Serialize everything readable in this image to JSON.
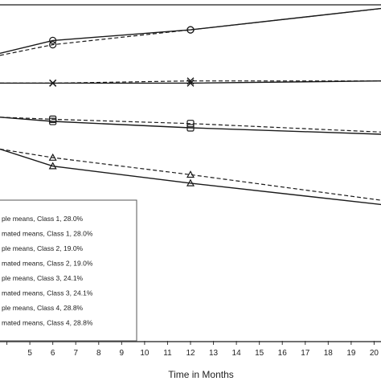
{
  "chart_data": {
    "type": "line",
    "title": "",
    "xlabel": "Time in Months",
    "ylabel": "",
    "xlim": [
      3.7,
      20.3
    ],
    "ylim": [
      0,
      16
    ],
    "grid": false,
    "legend_position": "lower-left",
    "x_ticks": [
      5,
      6,
      7,
      8,
      9,
      10,
      11,
      12,
      13,
      14,
      15,
      16,
      17,
      18,
      19,
      20
    ],
    "x_tick_labels": [
      "5",
      "6",
      "7",
      "8",
      "9",
      "10",
      "11",
      "12",
      "13",
      "14",
      "15",
      "16",
      "17",
      "18",
      "19",
      "20"
    ],
    "series": [
      {
        "name": "ple means, Class 1, 28.0%",
        "class": 1,
        "kind": "sample",
        "marker": "circle",
        "dash": "solid",
        "x": [
          3.7,
          6,
          12,
          20.3
        ],
        "y": [
          13.5,
          14.1,
          14.6,
          15.6
        ]
      },
      {
        "name": "mated means, Class 1, 28.0%",
        "class": 1,
        "kind": "estimated",
        "marker": "circle",
        "dash": "dashed",
        "x": [
          3.7,
          6,
          12,
          20.3
        ],
        "y": [
          13.4,
          13.9,
          14.6,
          15.6
        ]
      },
      {
        "name": "ple means, Class 2, 19.0%",
        "class": 2,
        "kind": "sample",
        "marker": "x",
        "dash": "solid",
        "x": [
          3.7,
          6,
          12,
          20.3
        ],
        "y": [
          12.1,
          12.1,
          12.1,
          12.2
        ]
      },
      {
        "name": "mated means, Class 2, 19.0%",
        "class": 2,
        "kind": "estimated",
        "marker": "x",
        "dash": "dashed",
        "x": [
          3.7,
          6,
          12,
          20.3
        ],
        "y": [
          12.1,
          12.1,
          12.2,
          12.2
        ]
      },
      {
        "name": "ple means, Class 3, 24.1%",
        "class": 3,
        "kind": "sample",
        "marker": "square",
        "dash": "solid",
        "x": [
          3.7,
          6,
          12,
          20.3
        ],
        "y": [
          10.5,
          10.3,
          10.0,
          9.7
        ]
      },
      {
        "name": "mated means, Class 3, 24.1%",
        "class": 3,
        "kind": "estimated",
        "marker": "square",
        "dash": "dashed",
        "x": [
          3.7,
          6,
          12,
          20.3
        ],
        "y": [
          10.5,
          10.4,
          10.2,
          9.8
        ]
      },
      {
        "name": "ple means, Class 4, 28.8%",
        "class": 4,
        "kind": "sample",
        "marker": "triangle",
        "dash": "solid",
        "x": [
          3.7,
          6,
          12,
          20.3
        ],
        "y": [
          9.0,
          8.2,
          7.4,
          6.4
        ]
      },
      {
        "name": "mated means, Class 4, 28.8%",
        "class": 4,
        "kind": "estimated",
        "marker": "triangle",
        "dash": "dashed",
        "x": [
          3.7,
          6,
          12,
          20.3
        ],
        "y": [
          9.0,
          8.6,
          7.8,
          6.6
        ]
      }
    ],
    "legend": [
      "ple means, Class 1, 28.0%",
      "mated means, Class 1, 28.0%",
      "ple means, Class 2, 19.0%",
      "mated means, Class 2, 19.0%",
      "ple means, Class 3, 24.1%",
      "mated means, Class 3, 24.1%",
      "ple means, Class 4, 28.8%",
      "mated means, Class 4, 28.8%"
    ]
  },
  "colors": {
    "line": "#1a1a1a",
    "frame": "#333333",
    "background": "#ffffff"
  }
}
